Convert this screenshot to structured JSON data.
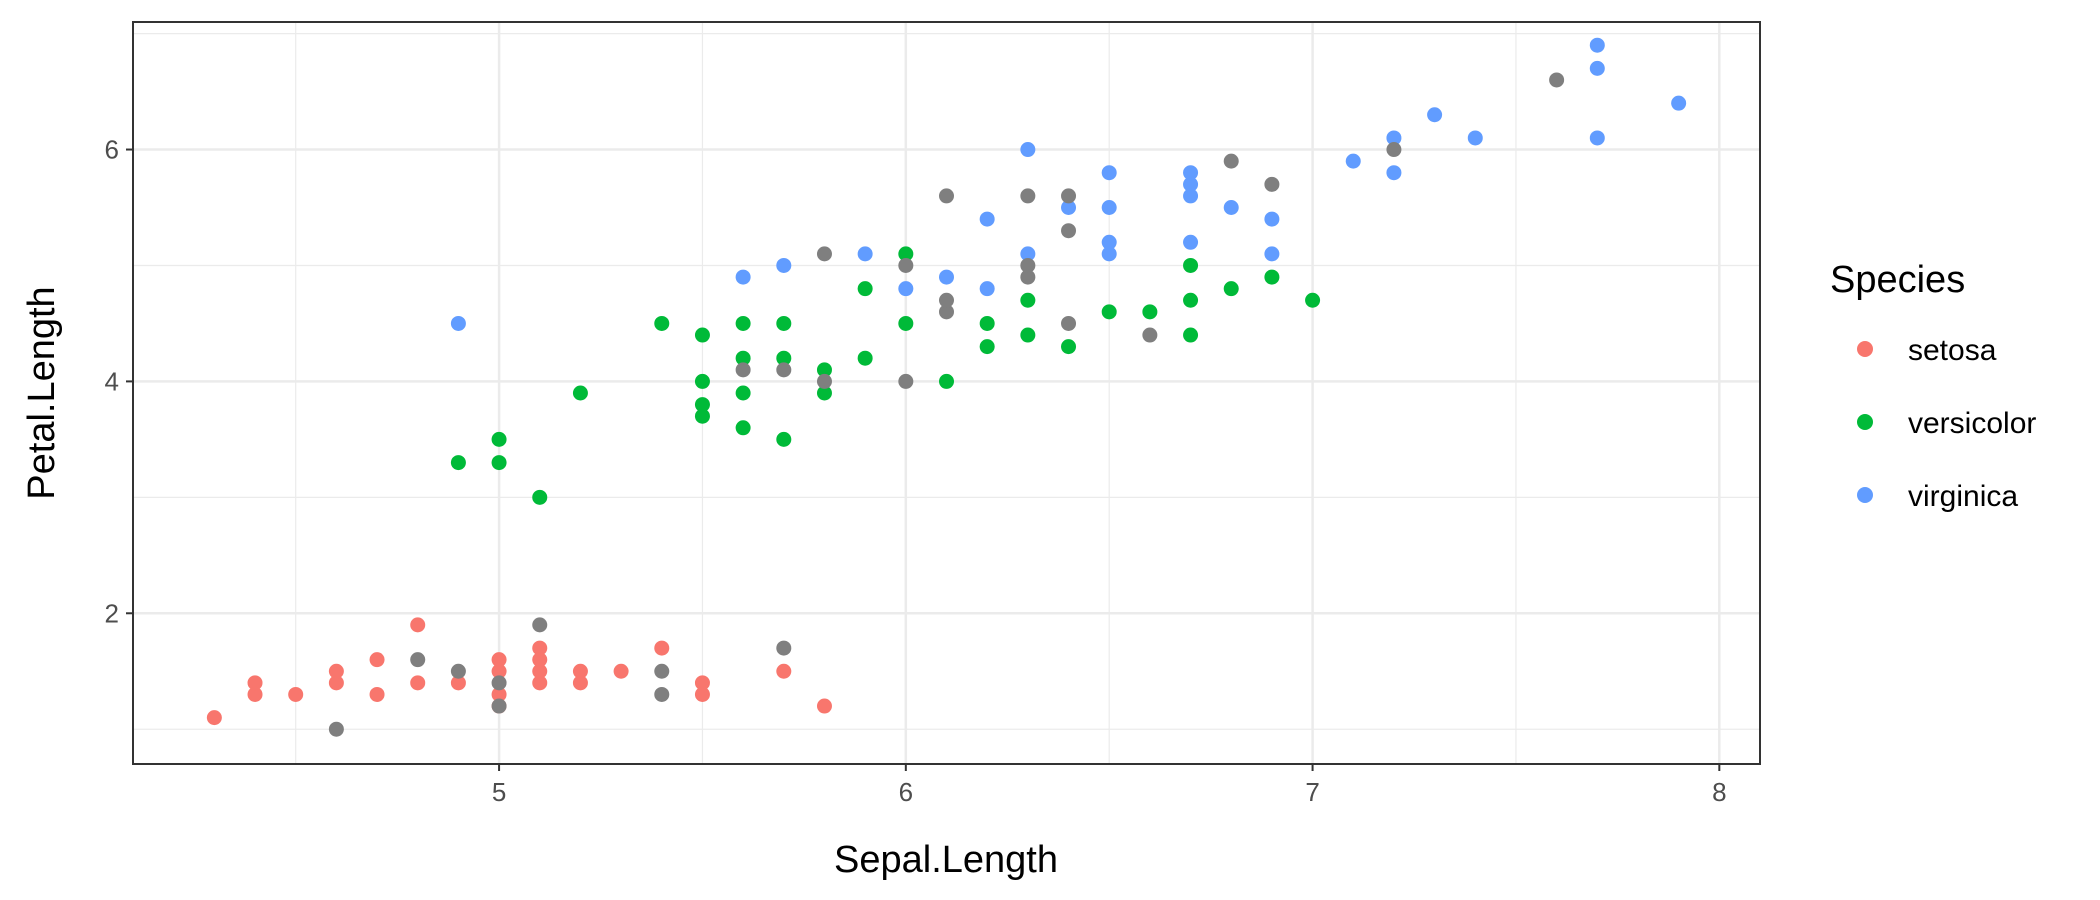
{
  "chart_data": {
    "type": "scatter",
    "xlabel": "Sepal.Length",
    "ylabel": "Petal.Length",
    "xlim": [
      4.1,
      8.1
    ],
    "ylim": [
      0.7,
      7.1
    ],
    "x_ticks": [
      5,
      6,
      7,
      8
    ],
    "y_ticks": [
      2,
      4,
      6
    ],
    "grid": true,
    "legend": {
      "title": "Species",
      "placement": "right",
      "entries": [
        "setosa",
        "versicolor",
        "virginica"
      ]
    },
    "colors": {
      "setosa": "#F8766D",
      "versicolor": "#00BA38",
      "virginica": "#619CFF",
      "na": "#7F7F7F"
    },
    "series": [
      {
        "name": "setosa",
        "points": [
          [
            4.3,
            1.1
          ],
          [
            4.4,
            1.3
          ],
          [
            4.4,
            1.4
          ],
          [
            4.5,
            1.3
          ],
          [
            4.6,
            1.4
          ],
          [
            4.6,
            1.5
          ],
          [
            4.7,
            1.3
          ],
          [
            4.7,
            1.6
          ],
          [
            4.8,
            1.4
          ],
          [
            4.8,
            1.9
          ],
          [
            4.9,
            1.4
          ],
          [
            5.0,
            1.2
          ],
          [
            5.0,
            1.3
          ],
          [
            5.0,
            1.5
          ],
          [
            5.0,
            1.6
          ],
          [
            5.1,
            1.4
          ],
          [
            5.1,
            1.5
          ],
          [
            5.1,
            1.6
          ],
          [
            5.1,
            1.7
          ],
          [
            5.2,
            1.4
          ],
          [
            5.2,
            1.5
          ],
          [
            5.3,
            1.5
          ],
          [
            5.4,
            1.7
          ],
          [
            5.5,
            1.3
          ],
          [
            5.5,
            1.4
          ],
          [
            5.7,
            1.5
          ],
          [
            5.8,
            1.2
          ]
        ]
      },
      {
        "name": "versicolor",
        "points": [
          [
            4.9,
            3.3
          ],
          [
            5.0,
            3.3
          ],
          [
            5.0,
            3.5
          ],
          [
            5.1,
            3.0
          ],
          [
            5.2,
            3.9
          ],
          [
            5.4,
            4.5
          ],
          [
            5.5,
            3.7
          ],
          [
            5.5,
            3.8
          ],
          [
            5.5,
            4.0
          ],
          [
            5.5,
            4.4
          ],
          [
            5.6,
            3.6
          ],
          [
            5.6,
            3.9
          ],
          [
            5.6,
            4.2
          ],
          [
            5.6,
            4.5
          ],
          [
            5.7,
            3.5
          ],
          [
            5.7,
            4.2
          ],
          [
            5.7,
            4.5
          ],
          [
            5.8,
            3.9
          ],
          [
            5.8,
            4.1
          ],
          [
            5.9,
            4.2
          ],
          [
            5.9,
            4.8
          ],
          [
            6.0,
            4.5
          ],
          [
            6.0,
            5.1
          ],
          [
            6.1,
            4.0
          ],
          [
            6.2,
            4.3
          ],
          [
            6.2,
            4.5
          ],
          [
            6.3,
            4.4
          ],
          [
            6.3,
            4.7
          ],
          [
            6.4,
            4.3
          ],
          [
            6.5,
            4.6
          ],
          [
            6.6,
            4.6
          ],
          [
            6.7,
            4.4
          ],
          [
            6.7,
            4.7
          ],
          [
            6.7,
            5.0
          ],
          [
            6.8,
            4.8
          ],
          [
            6.9,
            4.9
          ],
          [
            7.0,
            4.7
          ]
        ]
      },
      {
        "name": "virginica",
        "points": [
          [
            4.9,
            4.5
          ],
          [
            5.6,
            4.9
          ],
          [
            5.7,
            5.0
          ],
          [
            5.9,
            5.1
          ],
          [
            6.0,
            4.8
          ],
          [
            6.1,
            4.9
          ],
          [
            6.2,
            4.8
          ],
          [
            6.2,
            5.4
          ],
          [
            6.3,
            5.1
          ],
          [
            6.3,
            6.0
          ],
          [
            6.4,
            5.5
          ],
          [
            6.5,
            5.1
          ],
          [
            6.5,
            5.2
          ],
          [
            6.5,
            5.5
          ],
          [
            6.5,
            5.8
          ],
          [
            6.7,
            5.2
          ],
          [
            6.7,
            5.6
          ],
          [
            6.7,
            5.7
          ],
          [
            6.7,
            5.8
          ],
          [
            6.8,
            5.5
          ],
          [
            6.9,
            5.1
          ],
          [
            6.9,
            5.4
          ],
          [
            7.1,
            5.9
          ],
          [
            7.2,
            5.8
          ],
          [
            7.2,
            6.1
          ],
          [
            7.3,
            6.3
          ],
          [
            7.4,
            6.1
          ],
          [
            7.7,
            6.1
          ],
          [
            7.7,
            6.7
          ],
          [
            7.7,
            6.9
          ],
          [
            7.9,
            6.4
          ]
        ]
      },
      {
        "name": "",
        "points": [
          [
            4.6,
            1.0
          ],
          [
            4.8,
            1.6
          ],
          [
            4.9,
            1.5
          ],
          [
            5.0,
            1.2
          ],
          [
            5.0,
            1.4
          ],
          [
            5.1,
            1.9
          ],
          [
            5.4,
            1.3
          ],
          [
            5.4,
            1.5
          ],
          [
            5.7,
            1.7
          ],
          [
            5.6,
            4.1
          ],
          [
            5.7,
            4.1
          ],
          [
            5.8,
            4.0
          ],
          [
            5.8,
            5.1
          ],
          [
            6.0,
            4.0
          ],
          [
            6.0,
            5.0
          ],
          [
            6.1,
            4.6
          ],
          [
            6.1,
            4.7
          ],
          [
            6.1,
            5.6
          ],
          [
            6.3,
            4.9
          ],
          [
            6.3,
            5.0
          ],
          [
            6.3,
            5.6
          ],
          [
            6.4,
            4.5
          ],
          [
            6.4,
            5.3
          ],
          [
            6.4,
            5.6
          ],
          [
            6.6,
            4.4
          ],
          [
            6.8,
            5.9
          ],
          [
            6.9,
            5.7
          ],
          [
            7.2,
            6.0
          ],
          [
            7.6,
            6.6
          ]
        ]
      }
    ]
  }
}
